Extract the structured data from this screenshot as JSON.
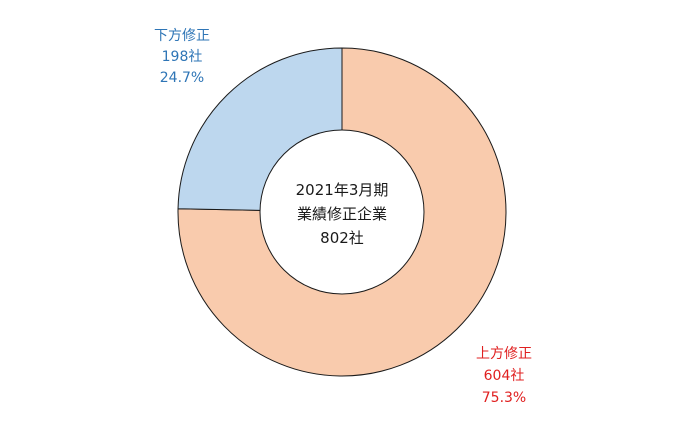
{
  "chart_data": {
    "type": "pie",
    "categories": [
      "上方修正",
      "下方修正"
    ],
    "values": [
      604,
      198
    ],
    "count_labels": [
      "604社",
      "198社"
    ],
    "percent_labels": [
      "75.3%",
      "24.7%"
    ],
    "colors": [
      "#f9cbad",
      "#bdd7ee"
    ],
    "label_colors": [
      "#e02020",
      "#2e75b6"
    ],
    "edge_color": "#1a1a1a",
    "center_text": [
      "2021年3月期",
      "業績修正企業",
      "802社"
    ]
  }
}
